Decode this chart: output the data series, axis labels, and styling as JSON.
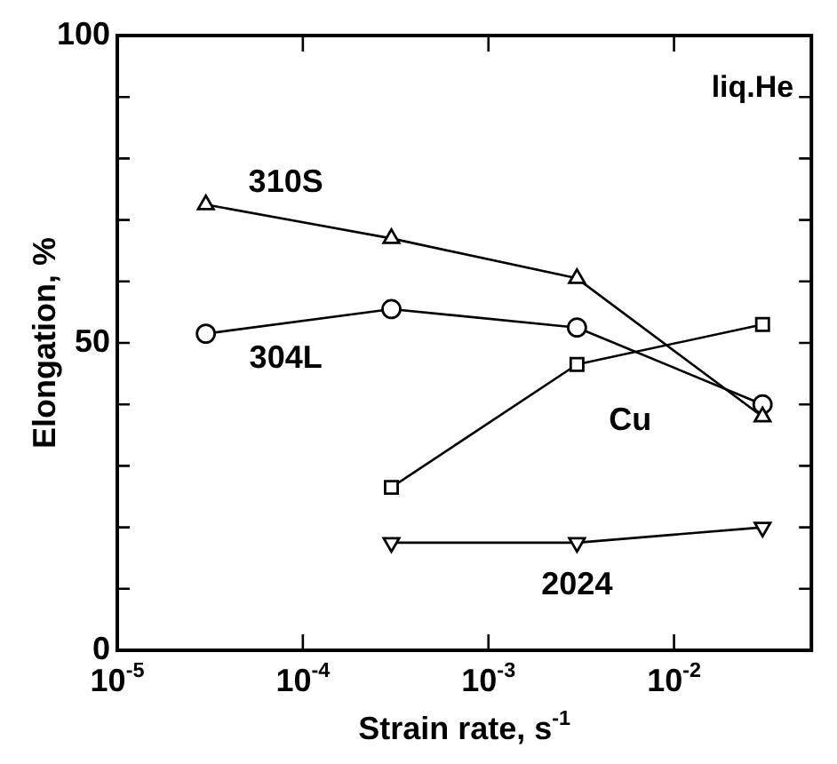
{
  "chart_data": {
    "type": "line",
    "xlabel": "Strain rate, s$^{-1}$",
    "ylabel": "Elongation, %",
    "log": "x",
    "xlim": [
      1e-05,
      0.055
    ],
    "xticks": [
      {
        "value": 1e-05,
        "label": "10$^{-5}$"
      },
      {
        "value": 0.0001,
        "label": "10$^{-4}$"
      },
      {
        "value": 0.001,
        "label": "10$^{-3}$"
      },
      {
        "value": 0.01,
        "label": "10$^{-2}$"
      }
    ],
    "ylim": [
      0,
      100
    ],
    "yticks": [
      0,
      {
        "value": 10,
        "label": null
      },
      {
        "value": 20,
        "label": null
      },
      {
        "value": 30,
        "label": null
      },
      {
        "value": 40,
        "label": null
      },
      50,
      {
        "value": 60,
        "label": null
      },
      {
        "value": 70,
        "label": null
      },
      {
        "value": 80,
        "label": null
      },
      {
        "value": 90,
        "label": null
      },
      100
    ],
    "grid": false,
    "legend": false,
    "line_style": "solid",
    "annotations": [
      "liq.He"
    ],
    "series": [
      {
        "name": "310S",
        "color": "#000000",
        "marker": "triangle",
        "x": [
          3e-05,
          0.0003,
          0.003,
          0.03
        ],
        "values": [
          72.5,
          67,
          60.5,
          38
        ]
      },
      {
        "name": "304L",
        "color": "#000000",
        "marker": "circle",
        "x": [
          3e-05,
          0.0003,
          0.003,
          0.03
        ],
        "values": [
          51.5,
          55.5,
          52.5,
          40
        ]
      },
      {
        "name": "Cu",
        "color": "#000000",
        "marker": "square",
        "x": [
          0.0003,
          0.003,
          0.03
        ],
        "values": [
          26.5,
          46.5,
          53
        ]
      },
      {
        "name": "2024",
        "color": "#000000",
        "marker": "triangle-down",
        "x": [
          0.0003,
          0.003,
          0.03
        ],
        "values": [
          17.5,
          17.5,
          20
        ]
      }
    ]
  }
}
